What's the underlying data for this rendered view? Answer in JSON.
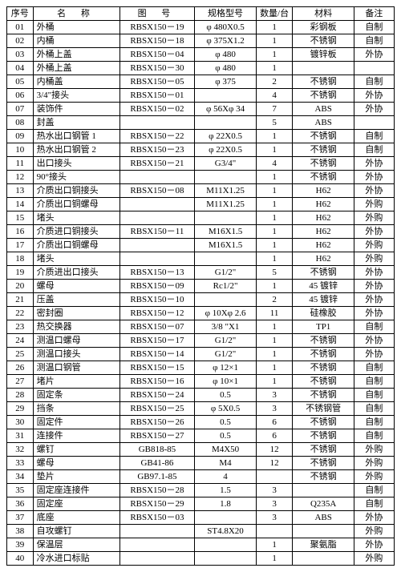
{
  "columns": [
    "序号",
    "名  称",
    "图  号",
    "规格型号",
    "数量/台",
    "材料",
    "备注"
  ],
  "rows": [
    [
      "01",
      "外桶",
      "RBSX150－19",
      "φ 480X0.5",
      "1",
      "彩钢板",
      "自制"
    ],
    [
      "02",
      "内桶",
      "RBSX150－18",
      "φ 375X1.2",
      "1",
      "不锈钢",
      "自制"
    ],
    [
      "03",
      "外桶上盖",
      "RBSX150－04",
      "φ 480",
      "1",
      "镀锌板",
      "外协"
    ],
    [
      "04",
      "外桶上盖",
      "RBSX150－30",
      "φ 480",
      "1",
      "",
      ""
    ],
    [
      "05",
      "内桶盖",
      "RBSX150－05",
      "φ 375",
      "2",
      "不锈钢",
      "自制"
    ],
    [
      "06",
      "3/4\"接头",
      "RBSX150－01",
      "",
      "4",
      "不锈钢",
      "外协"
    ],
    [
      "07",
      "装饰件",
      "RBSX150－02",
      "φ 56Xφ 34",
      "7",
      "ABS",
      "外协"
    ],
    [
      "08",
      "封盖",
      "",
      "",
      "5",
      "ABS",
      ""
    ],
    [
      "09",
      "热水出口钢管 1",
      "RBSX150－22",
      "φ 22X0.5",
      "1",
      "不锈钢",
      "自制"
    ],
    [
      "10",
      "热水出口钢管 2",
      "RBSX150－23",
      "φ 22X0.5",
      "1",
      "不锈钢",
      "自制"
    ],
    [
      "11",
      "出口接头",
      "RBSX150－21",
      "G3/4\"",
      "4",
      "不锈钢",
      "外协"
    ],
    [
      "12",
      "90°接头",
      "",
      "",
      "1",
      "不锈钢",
      "外协"
    ],
    [
      "13",
      "介质出口铜接头",
      "RBSX150－08",
      "M11X1.25",
      "1",
      "H62",
      "外协"
    ],
    [
      "14",
      "介质出口铜螺母",
      "",
      "M11X1.25",
      "1",
      "H62",
      "外购"
    ],
    [
      "15",
      "堵头",
      "",
      "",
      "1",
      "H62",
      "外购"
    ],
    [
      "16",
      "介质进口铜接头",
      "RBSX150－11",
      "M16X1.5",
      "1",
      "H62",
      "外协"
    ],
    [
      "17",
      "介质出口铜螺母",
      "",
      "M16X1.5",
      "1",
      "H62",
      "外购"
    ],
    [
      "18",
      "堵头",
      "",
      "",
      "1",
      "H62",
      "外购"
    ],
    [
      "19",
      "介质进出口接头",
      "RBSX150－13",
      "G1/2\"",
      "5",
      "不锈钢",
      "外协"
    ],
    [
      "20",
      "螺母",
      "RBSX150－09",
      "Rc1/2\"",
      "1",
      "45 镀锌",
      "外协"
    ],
    [
      "21",
      "压盖",
      "RBSX150－10",
      "",
      "2",
      "45 镀锌",
      "外协"
    ],
    [
      "22",
      "密封圈",
      "RBSX150－12",
      "φ 10Xφ 2.6",
      "11",
      "硅橡胶",
      "外协"
    ],
    [
      "23",
      "热交换器",
      "RBSX150－07",
      "3/8 \"X1",
      "1",
      "TP1",
      "自制"
    ],
    [
      "24",
      "测温口螺母",
      "RBSX150－17",
      "G1/2\"",
      "1",
      "不锈钢",
      "外协"
    ],
    [
      "25",
      "测温口接头",
      "RBSX150－14",
      "G1/2\"",
      "1",
      "不锈钢",
      "外协"
    ],
    [
      "26",
      "测温口钢管",
      "RBSX150－15",
      "φ 12×1",
      "1",
      "不锈钢",
      "自制"
    ],
    [
      "27",
      "堵片",
      "RBSX150－16",
      "φ 10×1",
      "1",
      "不锈钢",
      "自制"
    ],
    [
      "28",
      "固定条",
      "RBSX150－24",
      "0.5",
      "3",
      "不锈钢",
      "自制"
    ],
    [
      "29",
      "挡条",
      "RBSX150－25",
      "φ 5X0.5",
      "3",
      "不锈钢管",
      "自制"
    ],
    [
      "30",
      "固定件",
      "RBSX150－26",
      "0.5",
      "6",
      "不锈钢",
      "自制"
    ],
    [
      "31",
      "连接件",
      "RBSX150－27",
      "0.5",
      "6",
      "不锈钢",
      "自制"
    ],
    [
      "32",
      "螺钉",
      "GB818-85",
      "M4X50",
      "12",
      "不锈钢",
      "外购"
    ],
    [
      "33",
      "螺母",
      "GB41-86",
      "M4",
      "12",
      "不锈钢",
      "外购"
    ],
    [
      "34",
      "垫片",
      "GB97.1-85",
      "4",
      "",
      "不锈钢",
      "外购"
    ],
    [
      "35",
      "固定座连接件",
      "RBSX150－28",
      "1.5",
      "3",
      "",
      "自制"
    ],
    [
      "36",
      "固定座",
      "RBSX150－29",
      "1.8",
      "3",
      "Q235A",
      "自制"
    ],
    [
      "37",
      "底座",
      "RBSX150－03",
      "",
      "3",
      "ABS",
      "外协"
    ],
    [
      "38",
      "自攻螺钉",
      "",
      "ST4.8X20",
      "",
      "",
      "外购"
    ],
    [
      "39",
      "保温层",
      "",
      "",
      "1",
      "聚氨脂",
      "外协"
    ],
    [
      "40",
      "冷水进口标贴",
      "",
      "",
      "1",
      "",
      "外购"
    ]
  ]
}
